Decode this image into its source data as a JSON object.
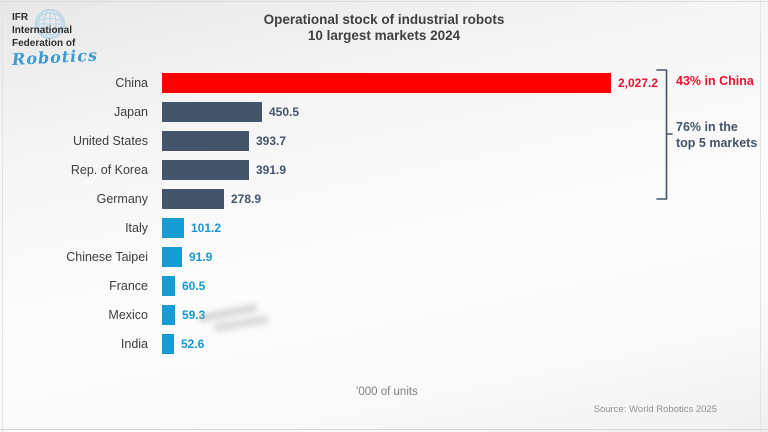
{
  "logo": {
    "line1": "IFR",
    "line2": "International",
    "line3": "Federation of",
    "script": "Robotics"
  },
  "title": {
    "line1": "Operational stock of industrial robots",
    "line2": "10 largest markets 2024"
  },
  "chart_data": {
    "type": "bar",
    "orientation": "horizontal",
    "title": "Operational stock of industrial robots",
    "subtitle": "10 largest markets 2024",
    "unit_note": "'000 of units",
    "categories": [
      "China",
      "Japan",
      "United States",
      "Rep. of Korea",
      "Germany",
      "Italy",
      "Chinese Taipei",
      "France",
      "Mexico",
      "India"
    ],
    "values": [
      2027.2,
      450.5,
      393.7,
      391.9,
      278.9,
      101.2,
      91.9,
      60.5,
      59.3,
      52.6
    ],
    "value_labels": [
      "2,027.2",
      "450.5",
      "393.7",
      "391.9",
      "278.9",
      "101.2",
      "91.9",
      "60.5",
      "59.3",
      "52.6"
    ],
    "bar_colors": [
      "#ff0000",
      "#44546a",
      "#44546a",
      "#44546a",
      "#44546a",
      "#169bd5",
      "#169bd5",
      "#169bd5",
      "#169bd5",
      "#169bd5"
    ],
    "value_label_colors": [
      "#e8112d",
      "#44546a",
      "#44546a",
      "#44546a",
      "#44546a",
      "#1599d6",
      "#1599d6",
      "#1599d6",
      "#1599d6",
      "#1599d6"
    ],
    "xlim": [
      0,
      2100
    ],
    "grid": false,
    "legend": false
  },
  "annotations": {
    "china_share": "43% in China",
    "top5_line1": "76% in the",
    "top5_line2": "top 5 markets"
  },
  "footer": {
    "unit_note": "'000 of units",
    "source": "Source: World Robotics 2025"
  },
  "colors": {
    "china_bar": "#ff0000",
    "top5_bar": "#44546a",
    "other_bar": "#169bd5",
    "red_text": "#e8112d",
    "slate_text": "#44546a",
    "logo_blue": "#3d9ad2",
    "globe_blue": "#b2d4e8"
  }
}
